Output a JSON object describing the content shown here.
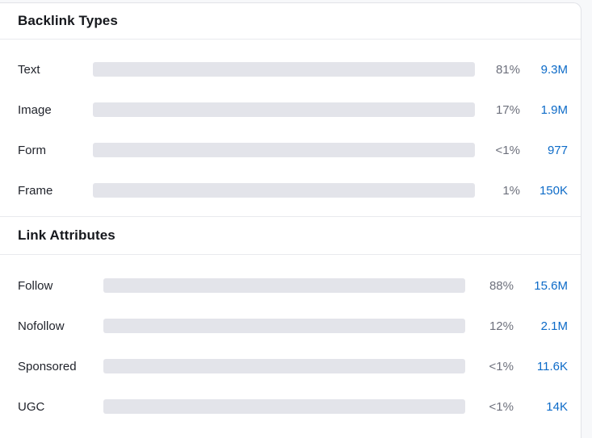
{
  "colors": {
    "blue": "#2bb3f3",
    "green": "#0dba87",
    "track": "#e3e4ea",
    "link_blue": "#0d6bc8",
    "percent_gray": "#6d707c"
  },
  "sections": [
    {
      "title": "Backlink Types",
      "rows": [
        {
          "label": "Text",
          "percent": "81%",
          "value": "9.3M",
          "bar_width_pct": 81,
          "bar_color": "blue"
        },
        {
          "label": "Image",
          "percent": "17%",
          "value": "1.9M",
          "bar_width_pct": 17,
          "bar_color": "blue"
        },
        {
          "label": "Form",
          "percent": "<1%",
          "value": "977",
          "bar_width_pct": 0.9,
          "bar_color": "blue"
        },
        {
          "label": "Frame",
          "percent": "1%",
          "value": "150K",
          "bar_width_pct": 1,
          "bar_color": "blue"
        }
      ]
    },
    {
      "title": "Link Attributes",
      "rows": [
        {
          "label": "Follow",
          "percent": "88%",
          "value": "15.6M",
          "bar_width_pct": 88,
          "bar_color": "green"
        },
        {
          "label": "Nofollow",
          "percent": "12%",
          "value": "2.1M",
          "bar_width_pct": 12,
          "bar_color": "blue"
        },
        {
          "label": "Sponsored",
          "percent": "<1%",
          "value": "11.6K",
          "bar_width_pct": 0.9,
          "bar_color": "blue"
        },
        {
          "label": "UGC",
          "percent": "<1%",
          "value": "14K",
          "bar_width_pct": 0.9,
          "bar_color": "blue"
        }
      ]
    }
  ],
  "chart_data": [
    {
      "type": "bar",
      "title": "Backlink Types",
      "orientation": "horizontal",
      "categories": [
        "Text",
        "Image",
        "Form",
        "Frame"
      ],
      "values": [
        81,
        17,
        0.9,
        1
      ],
      "value_labels": [
        "81%",
        "17%",
        "<1%",
        "1%"
      ],
      "counts": [
        "9.3M",
        "1.9M",
        "977",
        "150K"
      ],
      "xlim": [
        0,
        100
      ],
      "bar_colors": [
        "#2bb3f3",
        "#2bb3f3",
        "#2bb3f3",
        "#2bb3f3"
      ]
    },
    {
      "type": "bar",
      "title": "Link Attributes",
      "orientation": "horizontal",
      "categories": [
        "Follow",
        "Nofollow",
        "Sponsored",
        "UGC"
      ],
      "values": [
        88,
        12,
        0.9,
        0.9
      ],
      "value_labels": [
        "88%",
        "12%",
        "<1%",
        "<1%"
      ],
      "counts": [
        "15.6M",
        "2.1M",
        "11.6K",
        "14K"
      ],
      "xlim": [
        0,
        100
      ],
      "bar_colors": [
        "#0dba87",
        "#2bb3f3",
        "#2bb3f3",
        "#2bb3f3"
      ]
    }
  ]
}
